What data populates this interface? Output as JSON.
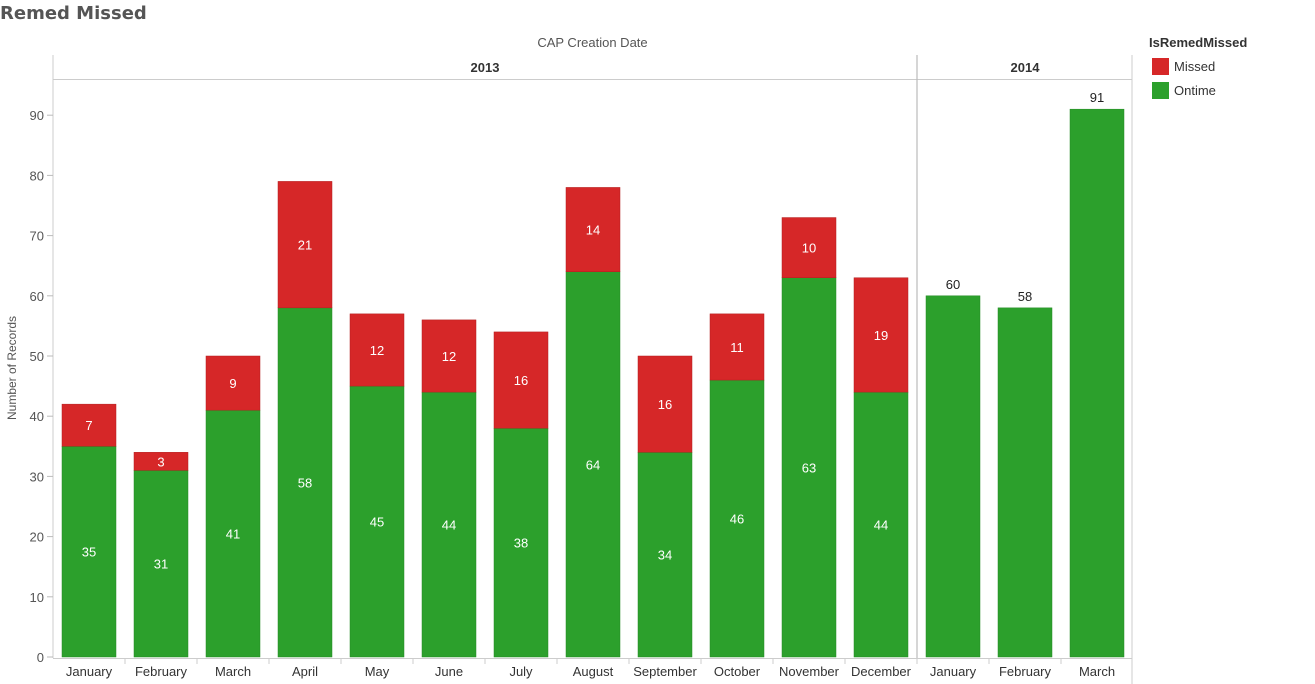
{
  "page": {
    "title": "Remed Missed"
  },
  "legend": {
    "title": "IsRemedMissed",
    "items": [
      {
        "label": "Missed",
        "color": "#d62728"
      },
      {
        "label": "Ontime",
        "color": "#2ca02c"
      }
    ]
  },
  "chart_data": {
    "type": "bar",
    "stacked": true,
    "title": "",
    "column_header": "CAP Creation Date",
    "ylabel": "Number of Records",
    "ylim": [
      0,
      95
    ],
    "yticks": [
      0,
      10,
      20,
      30,
      40,
      50,
      60,
      70,
      80,
      90
    ],
    "grid": false,
    "legend_position": "right",
    "groups": [
      {
        "label": "2013",
        "categories": [
          "January",
          "February",
          "March",
          "April",
          "May",
          "June",
          "July",
          "August",
          "September",
          "October",
          "November",
          "December"
        ]
      },
      {
        "label": "2014",
        "categories": [
          "January",
          "February",
          "March"
        ]
      }
    ],
    "categories": [
      "January",
      "February",
      "March",
      "April",
      "May",
      "June",
      "July",
      "August",
      "September",
      "October",
      "November",
      "December",
      "January",
      "February",
      "March"
    ],
    "series": [
      {
        "name": "Ontime",
        "color": "#2ca02c",
        "values": [
          35,
          31,
          41,
          58,
          45,
          44,
          38,
          64,
          34,
          46,
          63,
          44,
          60,
          58,
          91
        ]
      },
      {
        "name": "Missed",
        "color": "#d62728",
        "values": [
          7,
          3,
          9,
          21,
          12,
          12,
          16,
          14,
          16,
          11,
          10,
          19,
          null,
          null,
          null
        ]
      }
    ],
    "totals": [
      42,
      34,
      50,
      79,
      57,
      56,
      54,
      78,
      50,
      57,
      73,
      63,
      60,
      58,
      91
    ]
  }
}
